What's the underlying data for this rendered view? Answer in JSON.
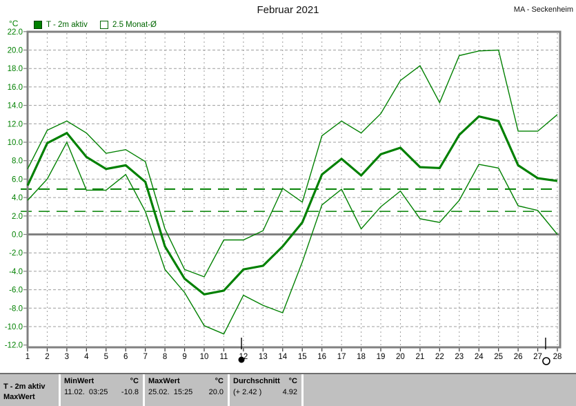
{
  "header": {
    "title": "Februar 2021",
    "station": "MA - Seckenheim"
  },
  "legend": {
    "items": [
      {
        "label": "T - 2m aktiv",
        "swatch": "filled-green-square"
      },
      {
        "label": "2.5 Monat-Ø",
        "swatch": "outline-square"
      }
    ]
  },
  "axes": {
    "unit_label": "°C",
    "y_ticks": [
      "22.0",
      "20.0",
      "18.0",
      "16.0",
      "14.0",
      "12.0",
      "10.0",
      "8.0",
      "6.0",
      "4.0",
      "2.0",
      "0.0",
      "-2.0",
      "-4.0",
      "-6.0",
      "-8.0",
      "-10.0",
      "-12.0"
    ],
    "x_ticks": [
      "1",
      "2",
      "3",
      "4",
      "5",
      "6",
      "7",
      "8",
      "9",
      "10",
      "11",
      "12",
      "13",
      "14",
      "15",
      "16",
      "17",
      "18",
      "19",
      "20",
      "21",
      "22",
      "23",
      "24",
      "25",
      "26",
      "27",
      "28"
    ]
  },
  "chart_data": {
    "type": "line",
    "title": "Februar 2021",
    "station": "MA - Seckenheim",
    "xlabel": "",
    "ylabel": "°C",
    "ylim": [
      -12,
      22
    ],
    "grid": true,
    "x": [
      1,
      2,
      3,
      4,
      5,
      6,
      7,
      8,
      9,
      10,
      11,
      12,
      13,
      14,
      15,
      16,
      17,
      18,
      19,
      20,
      21,
      22,
      23,
      24,
      25,
      26,
      27,
      28
    ],
    "series": [
      {
        "name": "max",
        "style": "thin",
        "values": [
          7.1,
          11.3,
          12.3,
          11.0,
          8.8,
          9.2,
          7.9,
          0.6,
          -3.8,
          -4.6,
          -0.6,
          -0.6,
          0.4,
          5.0,
          3.5,
          10.7,
          12.3,
          11.0,
          13.1,
          16.7,
          18.3,
          14.3,
          19.4,
          19.9,
          20.0,
          11.2,
          11.2,
          13.0
        ]
      },
      {
        "name": "T - 2m aktiv",
        "style": "thick",
        "values": [
          5.3,
          9.9,
          11.0,
          8.4,
          7.1,
          7.5,
          5.7,
          -1.3,
          -4.8,
          -6.5,
          -6.1,
          -3.8,
          -3.4,
          -1.3,
          1.3,
          6.5,
          8.2,
          6.4,
          8.7,
          9.4,
          7.3,
          7.2,
          10.8,
          12.8,
          12.3,
          7.5,
          6.1,
          5.8
        ]
      },
      {
        "name": "min",
        "style": "thin",
        "values": [
          3.7,
          6.0,
          10.0,
          4.8,
          4.8,
          6.5,
          2.5,
          -3.8,
          -6.3,
          -9.9,
          -10.8,
          -6.6,
          -7.7,
          -8.5,
          -3.0,
          3.2,
          4.9,
          0.6,
          3.0,
          4.7,
          1.7,
          1.3,
          3.7,
          7.6,
          7.2,
          3.1,
          2.6,
          0.0
        ]
      }
    ],
    "reference_lines": [
      {
        "name": "Durchschnitt",
        "value": 4.92,
        "style": "long-dash"
      },
      {
        "name": "2.5 Monat-Ø",
        "value": 2.5,
        "style": "long-dash"
      }
    ],
    "moon_markers": [
      {
        "type": "new-moon",
        "day": 11.9,
        "symbol": "●"
      },
      {
        "type": "full-moon",
        "day": 27.4,
        "symbol": "○"
      }
    ]
  },
  "info_bar": {
    "curve_label": "T - 2m aktiv",
    "mode_label": "MaxWert",
    "columns": [
      {
        "header": "MinWert",
        "unit": "°C",
        "datetime": "11.02.  03:25",
        "value": "-10.8"
      },
      {
        "header": "MaxWert",
        "unit": "°C",
        "datetime": "25.02.  15:25",
        "value": "20.0"
      },
      {
        "header": "Durchschnitt",
        "unit": "°C",
        "datetime": "(+ 2.42 )",
        "value": "4.92"
      }
    ]
  },
  "colors": {
    "series_green": "#008000",
    "reference_green": "#008000",
    "label_green": "#006600",
    "axis_label_green": "#008000",
    "grid_gray": "#9c9c9c",
    "axis_gray": "#808080",
    "bar_bg": "#c0c0c0"
  }
}
